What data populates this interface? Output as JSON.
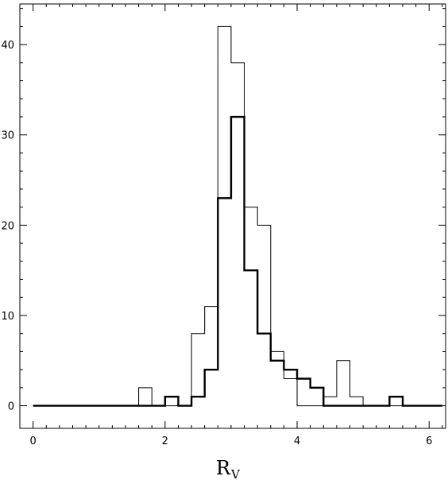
{
  "chart_data": {
    "type": "histogram",
    "title": "",
    "xlabel": "R",
    "xlabel_subscript": "V",
    "ylabel": "",
    "xlim": [
      -0.2,
      6.25
    ],
    "ylim": [
      -2.5,
      44.5
    ],
    "xticks": [
      0,
      2,
      4,
      6
    ],
    "yticks": [
      0,
      10,
      20,
      30,
      40
    ],
    "bin_width": 0.2,
    "grid": false,
    "legend": "none",
    "series": [
      {
        "style": "thin",
        "steps": [
          {
            "x0": 0.0,
            "x1": 1.6,
            "count": 0
          },
          {
            "x0": 1.6,
            "x1": 1.8,
            "count": 2
          },
          {
            "x0": 1.8,
            "x1": 2.4,
            "count": 0
          },
          {
            "x0": 2.4,
            "x1": 2.6,
            "count": 8
          },
          {
            "x0": 2.6,
            "x1": 2.8,
            "count": 11
          },
          {
            "x0": 2.8,
            "x1": 3.0,
            "count": 42
          },
          {
            "x0": 3.0,
            "x1": 3.2,
            "count": 38
          },
          {
            "x0": 3.2,
            "x1": 3.4,
            "count": 22
          },
          {
            "x0": 3.4,
            "x1": 3.6,
            "count": 20
          },
          {
            "x0": 3.6,
            "x1": 3.8,
            "count": 6
          },
          {
            "x0": 3.8,
            "x1": 4.0,
            "count": 3
          },
          {
            "x0": 4.0,
            "x1": 4.4,
            "count": 0
          },
          {
            "x0": 4.4,
            "x1": 4.6,
            "count": 1
          },
          {
            "x0": 4.6,
            "x1": 4.8,
            "count": 5
          },
          {
            "x0": 4.8,
            "x1": 5.0,
            "count": 1
          },
          {
            "x0": 5.0,
            "x1": 6.2,
            "count": 0
          }
        ]
      },
      {
        "style": "thick",
        "steps": [
          {
            "x0": 0.0,
            "x1": 2.0,
            "count": 0
          },
          {
            "x0": 2.0,
            "x1": 2.2,
            "count": 1
          },
          {
            "x0": 2.2,
            "x1": 2.4,
            "count": 0
          },
          {
            "x0": 2.4,
            "x1": 2.6,
            "count": 1
          },
          {
            "x0": 2.6,
            "x1": 2.8,
            "count": 4
          },
          {
            "x0": 2.8,
            "x1": 3.0,
            "count": 23
          },
          {
            "x0": 3.0,
            "x1": 3.2,
            "count": 32
          },
          {
            "x0": 3.2,
            "x1": 3.4,
            "count": 15
          },
          {
            "x0": 3.4,
            "x1": 3.6,
            "count": 8
          },
          {
            "x0": 3.6,
            "x1": 3.8,
            "count": 5
          },
          {
            "x0": 3.8,
            "x1": 4.0,
            "count": 4
          },
          {
            "x0": 4.0,
            "x1": 4.2,
            "count": 3
          },
          {
            "x0": 4.2,
            "x1": 4.4,
            "count": 2
          },
          {
            "x0": 4.4,
            "x1": 5.4,
            "count": 0
          },
          {
            "x0": 5.4,
            "x1": 5.6,
            "count": 1
          },
          {
            "x0": 5.6,
            "x1": 6.2,
            "count": 0
          }
        ]
      }
    ]
  }
}
